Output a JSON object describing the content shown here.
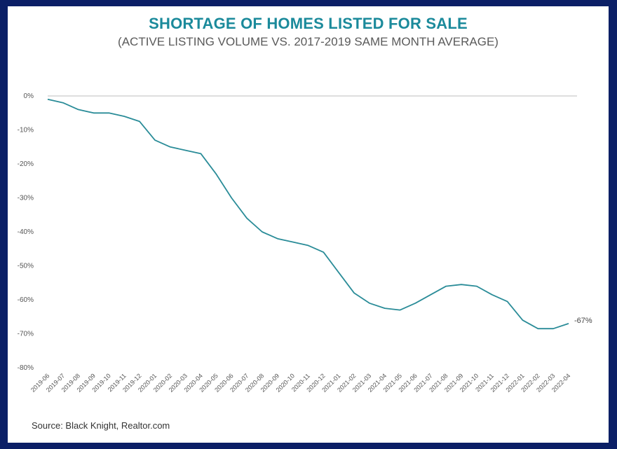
{
  "chart_data": {
    "type": "line",
    "title": "SHORTAGE OF HOMES LISTED FOR SALE",
    "subtitle": "(ACTIVE LISTING VOLUME VS. 2017-2019 SAME MONTH AVERAGE)",
    "source": "Source: Black Knight, Realtor.com",
    "xlabel": "",
    "ylabel": "",
    "ylim": [
      -80,
      0
    ],
    "yticks": [
      0,
      -10,
      -20,
      -30,
      -40,
      -50,
      -60,
      -70,
      -80
    ],
    "ytick_labels": [
      "0%",
      "-10%",
      "-20%",
      "-30%",
      "-40%",
      "-50%",
      "-60%",
      "-70%",
      "-80%"
    ],
    "grid": "none (zero baseline only)",
    "line_color": "#2a8c98",
    "x": [
      "2019-06",
      "2019-07",
      "2019-08",
      "2019-09",
      "2019-10",
      "2019-11",
      "2019-12",
      "2020-01",
      "2020-02",
      "2020-03",
      "2020-04",
      "2020-05",
      "2020-06",
      "2020-07",
      "2020-08",
      "2020-09",
      "2020-10",
      "2020-11",
      "2020-12",
      "2021-01",
      "2021-02",
      "2021-03",
      "2021-04",
      "2021-05",
      "2021-06",
      "2021-07",
      "2021-08",
      "2021-09",
      "2021-10",
      "2021-11",
      "2021-12",
      "2022-01",
      "2022-02",
      "2022-03",
      "2022-04"
    ],
    "series": [
      {
        "values": [
          -1,
          -2,
          -4,
          -5,
          -5,
          -6,
          -7.5,
          -13,
          -15,
          -16,
          -17,
          -23,
          -30,
          -36,
          -40,
          -42,
          -43,
          -44,
          -46,
          -52,
          -58,
          -61,
          -62.5,
          -63,
          -61,
          -58.5,
          -56,
          -55.5,
          -56,
          -58.5,
          -60.5,
          -66,
          -68.5,
          -68.5,
          -67
        ]
      }
    ],
    "end_label": "-67%"
  }
}
